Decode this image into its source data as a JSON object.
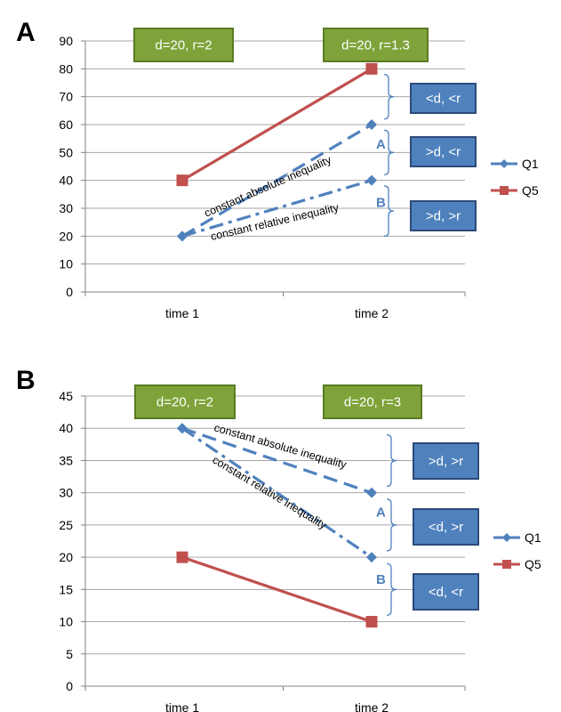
{
  "colors": {
    "q1": "#4f81bd",
    "q5": "#c0504d",
    "green_fill": "#7fa33a",
    "blue_box": "#4f81bd",
    "grid": "#a6a6a6"
  },
  "chart_data": [
    {
      "type": "line",
      "panel": "A",
      "categories": [
        "time 1",
        "time 2"
      ],
      "ylim": [
        0,
        90
      ],
      "yticks": [
        0,
        10,
        20,
        30,
        40,
        50,
        60,
        70,
        80,
        90
      ],
      "grid": true,
      "legend_position": "right",
      "series": [
        {
          "name": "Q1",
          "values": [
            20,
            60
          ],
          "style": "dashed",
          "label": "constant absolute inequality",
          "end_label": "A"
        },
        {
          "name": "Q1",
          "values": [
            20,
            40
          ],
          "style": "dash-dot",
          "label": "constant relative inequality",
          "end_label": "B"
        },
        {
          "name": "Q5",
          "values": [
            40,
            80
          ],
          "style": "solid"
        }
      ],
      "green_boxes": [
        "d=20, r=2",
        "d=20, r=1.3"
      ],
      "blue_boxes": [
        "<d, <r",
        ">d, <r",
        ">d, >r"
      ],
      "brace_ranges": [
        [
          62,
          78
        ],
        [
          42,
          58
        ],
        [
          20,
          38
        ]
      ]
    },
    {
      "type": "line",
      "panel": "B",
      "categories": [
        "time 1",
        "time 2"
      ],
      "ylim": [
        0,
        45
      ],
      "yticks": [
        0,
        5,
        10,
        15,
        20,
        25,
        30,
        35,
        40,
        45
      ],
      "grid": true,
      "legend_position": "right",
      "series": [
        {
          "name": "Q1",
          "values": [
            40,
            30
          ],
          "style": "dashed",
          "label": "constant absolute inequality",
          "end_label": "A"
        },
        {
          "name": "Q1",
          "values": [
            40,
            20
          ],
          "style": "dash-dot",
          "label": "constant relative inequality",
          "end_label": "B"
        },
        {
          "name": "Q5",
          "values": [
            20,
            10
          ],
          "style": "solid"
        }
      ],
      "green_boxes": [
        "d=20, r=2",
        "d=20, r=3"
      ],
      "blue_boxes": [
        ">d, >r",
        "<d, >r",
        "<d, <r"
      ],
      "brace_ranges": [
        [
          31,
          39
        ],
        [
          21,
          29
        ],
        [
          11,
          19
        ]
      ]
    }
  ],
  "legend": {
    "q1": "Q1",
    "q5": "Q5"
  }
}
